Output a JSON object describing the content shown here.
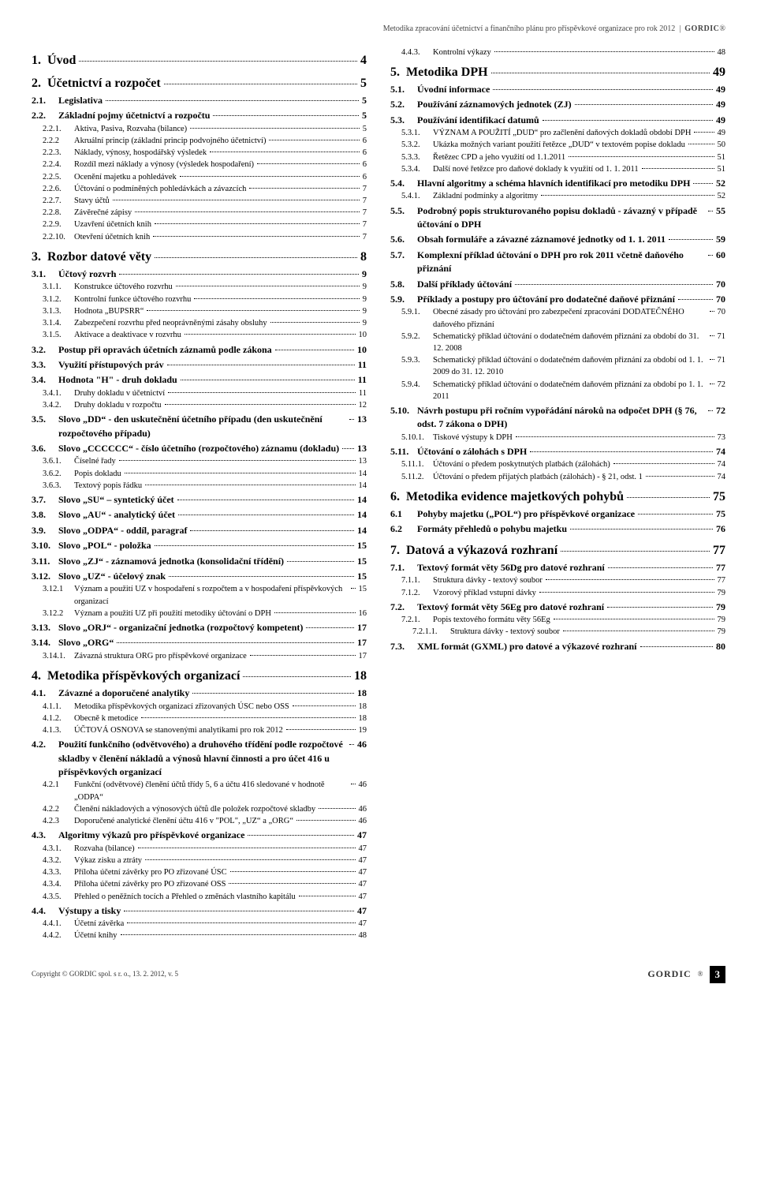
{
  "header": {
    "doctitle": "Metodika zpracování účetnictví a finančního plánu pro příspěvkové organizace pro rok 2012",
    "brand": "GORDIC",
    "reg": "®"
  },
  "footer": {
    "copyright": "Copyright © GORDIC spol. s r. o., 13. 2. 2012, v. 5",
    "brand": "GORDIC",
    "reg": "®",
    "page": "3"
  },
  "left": [
    {
      "l": 1,
      "n": "1.",
      "t": "Úvod",
      "p": "4"
    },
    {
      "l": 1,
      "n": "2.",
      "t": "Účetnictví a rozpočet",
      "p": "5"
    },
    {
      "l": 2,
      "n": "2.1.",
      "t": "Legislativa",
      "p": "5"
    },
    {
      "l": 2,
      "n": "2.2.",
      "t": "Základní pojmy účetnictví a rozpočtu",
      "p": "5"
    },
    {
      "l": 3,
      "n": "2.2.1.",
      "t": "Aktiva, Pasiva, Rozvaha (bilance)",
      "p": "5"
    },
    {
      "l": 3,
      "n": "2.2.2",
      "t": "Akruální princip (základní princip podvojného účetnictví)",
      "p": "6"
    },
    {
      "l": 3,
      "n": "2.2.3.",
      "t": "Náklady, výnosy, hospodářský výsledek",
      "p": "6"
    },
    {
      "l": 3,
      "n": "2.2.4.",
      "t": "Rozdíl mezi náklady a výnosy (výsledek hospodaření)",
      "p": "6"
    },
    {
      "l": 3,
      "n": "2.2.5.",
      "t": "Ocenění majetku a pohledávek",
      "p": "6"
    },
    {
      "l": 3,
      "n": "2.2.6.",
      "t": "Účtování o podmíněných pohledávkách a závazcích",
      "p": "7"
    },
    {
      "l": 3,
      "n": "2.2.7.",
      "t": "Stavy účtů",
      "p": "7"
    },
    {
      "l": 3,
      "n": "2.2.8.",
      "t": "Závěrečné zápisy",
      "p": "7"
    },
    {
      "l": 3,
      "n": "2.2.9.",
      "t": "Uzavření účetních knih",
      "p": "7"
    },
    {
      "l": 3,
      "n": "2.2.10.",
      "t": "Otevření účetních knih",
      "p": "7"
    },
    {
      "l": 1,
      "n": "3.",
      "t": "Rozbor datové věty",
      "p": "8"
    },
    {
      "l": 2,
      "n": "3.1.",
      "t": "Účtový rozvrh",
      "p": "9"
    },
    {
      "l": 3,
      "n": "3.1.1.",
      "t": "Konstrukce účtového rozvrhu",
      "p": "9"
    },
    {
      "l": 3,
      "n": "3.1.2.",
      "t": "Kontrolní funkce účtového rozvrhu",
      "p": "9"
    },
    {
      "l": 3,
      "n": "3.1.3.",
      "t": "Hodnota „BUPSRR“",
      "p": "9"
    },
    {
      "l": 3,
      "n": "3.1.4.",
      "t": "Zabezpečení rozvrhu před neoprávněnými zásahy obsluhy",
      "p": "9"
    },
    {
      "l": 3,
      "n": "3.1.5.",
      "t": "Aktivace a deaktivace v rozvrhu",
      "p": "10"
    },
    {
      "l": 2,
      "n": "3.2.",
      "t": "Postup při opravách účetních záznamů podle zákona",
      "p": "10"
    },
    {
      "l": 2,
      "n": "3.3.",
      "t": "Využití přístupových práv",
      "p": "11"
    },
    {
      "l": 2,
      "n": "3.4.",
      "t": "Hodnota \"H\" - druh dokladu",
      "p": "11"
    },
    {
      "l": 3,
      "n": "3.4.1.",
      "t": "Druhy dokladu v účetnictví",
      "p": "11"
    },
    {
      "l": 3,
      "n": "3.4.2.",
      "t": "Druhy dokladu v rozpočtu",
      "p": "12"
    },
    {
      "l": 2,
      "n": "3.5.",
      "t": "Slovo „DD“ - den uskutečnění účetního případu (den uskutečnění rozpočtového případu)",
      "p": "13"
    },
    {
      "l": 2,
      "n": "3.6.",
      "t": "Slovo „CCCCCC“ - číslo účetního (rozpočtového) záznamu (dokladu)",
      "p": "13"
    },
    {
      "l": 3,
      "n": "3.6.1.",
      "t": "Číselné řady",
      "p": "13"
    },
    {
      "l": 3,
      "n": "3.6.2.",
      "t": "Popis dokladu",
      "p": "14"
    },
    {
      "l": 3,
      "n": "3.6.3.",
      "t": "Textový popis řádku",
      "p": "14"
    },
    {
      "l": 2,
      "n": "3.7.",
      "t": "Slovo „SU“ – syntetický účet",
      "p": "14"
    },
    {
      "l": 2,
      "n": "3.8.",
      "t": "Slovo „AU“ - analytický účet",
      "p": "14"
    },
    {
      "l": 2,
      "n": "3.9.",
      "t": "Slovo „ODPA“ - oddíl, paragraf",
      "p": "14"
    },
    {
      "l": 2,
      "n": "3.10.",
      "t": "Slovo „POL“ - položka",
      "p": "15"
    },
    {
      "l": 2,
      "n": "3.11.",
      "t": "Slovo „ZJ“ - záznamová jednotka (konsolidační třídění)",
      "p": "15"
    },
    {
      "l": 2,
      "n": "3.12.",
      "t": "Slovo „UZ“ - účelový znak",
      "p": "15"
    },
    {
      "l": 3,
      "n": "3.12.1",
      "t": "Význam a použití UZ v hospodaření s rozpočtem a v hospodaření příspěvkových organizací",
      "p": "15"
    },
    {
      "l": 3,
      "n": "3.12.2",
      "t": "Význam a použití UZ při použití metodiky účtování o DPH",
      "p": "16"
    },
    {
      "l": 2,
      "n": "3.13.",
      "t": "Slovo „ORJ“ - organizační jednotka (rozpočtový kompetent)",
      "p": "17"
    },
    {
      "l": 2,
      "n": "3.14.",
      "t": "Slovo „ORG“",
      "p": "17"
    },
    {
      "l": 3,
      "n": "3.14.1.",
      "t": "Závazná struktura ORG pro příspěvkové organizace",
      "p": "17"
    },
    {
      "l": 1,
      "n": "4.",
      "t": "Metodika příspěvkových organizací",
      "p": "18"
    },
    {
      "l": 2,
      "n": "4.1.",
      "t": "Závazné a doporučené analytiky",
      "p": "18"
    },
    {
      "l": 3,
      "n": "4.1.1.",
      "t": "Metodika příspěvkových organizací zřizovaných ÚSC nebo OSS",
      "p": "18"
    },
    {
      "l": 3,
      "n": "4.1.2.",
      "t": "Obecně k metodice",
      "p": "18"
    },
    {
      "l": 3,
      "n": "4.1.3.",
      "t": "ÚČTOVÁ OSNOVA se stanovenými analytikami pro rok 2012",
      "p": "19"
    },
    {
      "l": 2,
      "n": "4.2.",
      "t": "Použití funkčního (odvětvového) a druhového třídění podle rozpočtové skladby v členění nákladů a výnosů hlavní činnosti a pro účet 416 u příspěvkových organizací",
      "p": "46"
    },
    {
      "l": 3,
      "n": "4.2.1",
      "t": "Funkční (odvětvové) členění účtů třídy 5, 6 a účtu 416 sledované v hodnotě „ODPA“",
      "p": "46"
    },
    {
      "l": 3,
      "n": "4.2.2",
      "t": "Členění nákladových a výnosových účtů dle položek rozpočtové skladby",
      "p": "46"
    },
    {
      "l": 3,
      "n": "4.2.3",
      "t": "Doporučené analytické členění účtu 416 v \"POL\", „UZ“ a „ORG“",
      "p": "46"
    },
    {
      "l": 2,
      "n": "4.3.",
      "t": "Algoritmy výkazů pro příspěvkové organizace",
      "p": "47"
    },
    {
      "l": 3,
      "n": "4.3.1.",
      "t": "Rozvaha (bilance)",
      "p": "47"
    },
    {
      "l": 3,
      "n": "4.3.2.",
      "t": "Výkaz zisku a ztráty",
      "p": "47"
    },
    {
      "l": 3,
      "n": "4.3.3.",
      "t": "Příloha účetní závěrky pro PO zřizované ÚSC",
      "p": "47"
    },
    {
      "l": 3,
      "n": "4.3.4.",
      "t": "Příloha účetní závěrky pro PO zřizované OSS",
      "p": "47"
    },
    {
      "l": 3,
      "n": "4.3.5.",
      "t": "Přehled o peněžních tocích a Přehled o změnách vlastního kapitálu",
      "p": "47"
    },
    {
      "l": 2,
      "n": "4.4.",
      "t": "Výstupy a tisky",
      "p": "47"
    },
    {
      "l": 3,
      "n": "4.4.1.",
      "t": "Účetní závěrka",
      "p": "47"
    },
    {
      "l": 3,
      "n": "4.4.2.",
      "t": "Účetní knihy",
      "p": "48"
    }
  ],
  "right": [
    {
      "l": 3,
      "n": "4.4.3.",
      "t": "Kontrolní výkazy",
      "p": "48"
    },
    {
      "l": 1,
      "n": "5.",
      "t": "Metodika DPH",
      "p": "49"
    },
    {
      "l": 2,
      "n": "5.1.",
      "t": "Úvodní informace",
      "p": "49"
    },
    {
      "l": 2,
      "n": "5.2.",
      "t": "Používání záznamových jednotek (ZJ)",
      "p": "49"
    },
    {
      "l": 2,
      "n": "5.3.",
      "t": "Používání identifikací datumů",
      "p": "49"
    },
    {
      "l": 3,
      "n": "5.3.1.",
      "t": "VÝZNAM A POUŽITÍ „DUD“ pro začlenění daňových dokladů období DPH",
      "p": "49"
    },
    {
      "l": 3,
      "n": "5.3.2.",
      "t": "Ukázka možných variant použití řetězce „DUD“ v textovém popise dokladu",
      "p": "50"
    },
    {
      "l": 3,
      "n": "5.3.3.",
      "t": "Řetězec CPD a jeho využití od 1.1.2011",
      "p": "51"
    },
    {
      "l": 3,
      "n": "5.3.4.",
      "t": "Další nové řetězce pro daňové doklady k využití od 1. 1. 2011",
      "p": "51"
    },
    {
      "l": 2,
      "n": "5.4.",
      "t": "Hlavní algoritmy a schéma hlavních identifikací pro metodiku DPH",
      "p": "52"
    },
    {
      "l": 3,
      "n": "5.4.1.",
      "t": "Základní podmínky a algoritmy",
      "p": "52"
    },
    {
      "l": 2,
      "n": "5.5.",
      "t": "Podrobný popis strukturovaného popisu dokladů - závazný v případě účtování o DPH",
      "p": "55"
    },
    {
      "l": 2,
      "n": "5.6.",
      "t": "Obsah formuláře a závazné záznamové jednotky od 1. 1. 2011",
      "p": "59"
    },
    {
      "l": 2,
      "n": "5.7.",
      "t": "Komplexní příklad účtování o DPH pro rok 2011 včetně daňového přiznání",
      "p": "60"
    },
    {
      "l": 2,
      "n": "5.8.",
      "t": "Další příklady účtování",
      "p": "70"
    },
    {
      "l": 2,
      "n": "5.9.",
      "t": "Příklady a postupy pro účtování pro dodatečné daňové přiznání",
      "p": "70"
    },
    {
      "l": 3,
      "n": "5.9.1.",
      "t": "Obecné zásady pro účtování pro zabezpečení zpracování DODATEČNÉHO daňového přiznání",
      "p": "70"
    },
    {
      "l": 3,
      "n": "5.9.2.",
      "t": "Schematický příklad účtování o dodatečném daňovém přiznání za období do 31. 12. 2008",
      "p": "71"
    },
    {
      "l": 3,
      "n": "5.9.3.",
      "t": "Schematický příklad účtování o dodatečném daňovém přiznání za období od 1. 1. 2009 do 31. 12. 2010",
      "p": "71"
    },
    {
      "l": 3,
      "n": "5.9.4.",
      "t": "Schematický příklad účtování o dodatečném daňovém přiznání za období po 1. 1. 2011",
      "p": "72"
    },
    {
      "l": 2,
      "n": "5.10.",
      "t": "Návrh postupu při ročním vypořádání nároků na odpočet DPH (§ 76, odst. 7 zákona o DPH)",
      "p": "72"
    },
    {
      "l": 3,
      "n": "5.10.1.",
      "t": "Tiskové výstupy k DPH",
      "p": "73"
    },
    {
      "l": 2,
      "n": "5.11.",
      "t": "Účtování o zálohách s DPH",
      "p": "74"
    },
    {
      "l": 3,
      "n": "5.11.1.",
      "t": "Účtování o předem poskytnutých platbách (zálohách)",
      "p": "74"
    },
    {
      "l": 3,
      "n": "5.11.2.",
      "t": "Účtování o předem přijatých platbách (zálohách) - § 21, odst. 1",
      "p": "74"
    },
    {
      "l": 1,
      "n": "6.",
      "t": "Metodika evidence majetkových pohybů",
      "p": "75"
    },
    {
      "l": 2,
      "n": "6.1",
      "t": "Pohyby majetku („POL“) pro příspěvkové organizace",
      "p": "75"
    },
    {
      "l": 2,
      "n": "6.2",
      "t": "Formáty přehledů o pohybu majetku",
      "p": "76"
    },
    {
      "l": 1,
      "n": "7.",
      "t": "Datová a výkazová rozhraní",
      "p": "77"
    },
    {
      "l": 2,
      "n": "7.1.",
      "t": "Textový formát věty 56Dg pro datové rozhraní",
      "p": "77"
    },
    {
      "l": 3,
      "n": "7.1.1.",
      "t": "Struktura dávky - textový soubor",
      "p": "77"
    },
    {
      "l": 3,
      "n": "7.1.2.",
      "t": "Vzorový příklad vstupní dávky",
      "p": "79"
    },
    {
      "l": 2,
      "n": "7.2.",
      "t": "Textový formát věty 56Eg pro datové rozhraní",
      "p": "79"
    },
    {
      "l": 3,
      "n": "7.2.1.",
      "t": "Popis textového formátu věty 56Eg",
      "p": "79"
    },
    {
      "l": 4,
      "n": "7.2.1.1.",
      "t": "Struktura dávky - textový soubor",
      "p": "79"
    },
    {
      "l": 2,
      "n": "7.3.",
      "t": "XML formát (GXML) pro datové a výkazové rozhraní",
      "p": "80"
    }
  ]
}
